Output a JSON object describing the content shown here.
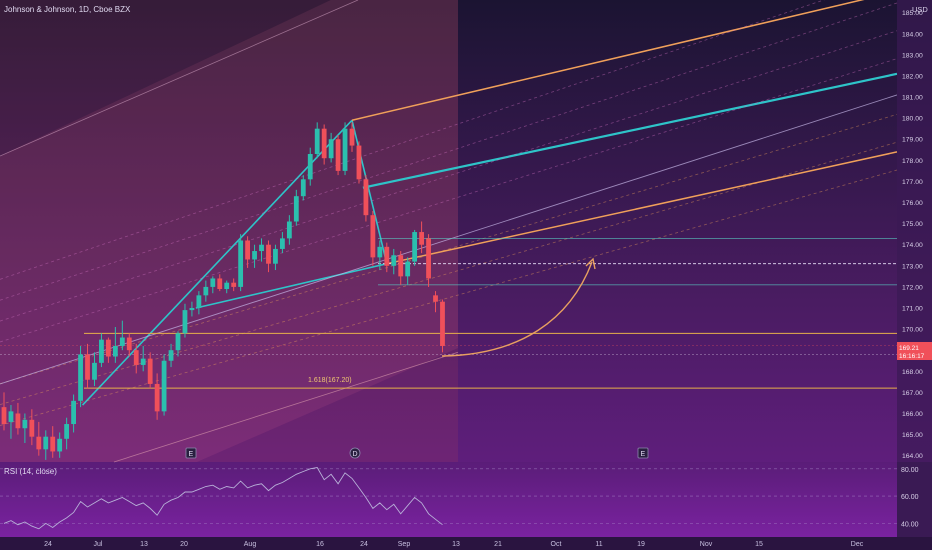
{
  "header": {
    "symbol_title": "Johnson & Johnson, 1D, Cboe BZX"
  },
  "rsi": {
    "label": "RSI (14, close)",
    "ticks": [
      "80.00",
      "60.00",
      "40.00"
    ]
  },
  "currency": "USD",
  "fib_label": "1.618(167.20)",
  "price_badge": {
    "line1": "169.21",
    "line2": "16:16:17"
  },
  "event_markers": [
    "E",
    "D",
    "E"
  ],
  "colors": {
    "up": "#2bbfae",
    "down": "#f0505a",
    "pitchfork_median": "#2ec4c9",
    "pitchfork_upper": "#f0a05a",
    "fib_line": "#e8b04a",
    "rsi_line": "#b8b0d8",
    "arrow": "#e8a060"
  },
  "chart_data": {
    "type": "candlestick",
    "title": "Johnson & Johnson, 1D, Cboe BZX",
    "y_unit": "USD",
    "ylim": [
      163.7,
      185.6
    ],
    "y_ticks": [
      185,
      184,
      183,
      182,
      181,
      180,
      179,
      178,
      177,
      176,
      175,
      174,
      173,
      172,
      171,
      170,
      169,
      168,
      167,
      166,
      165,
      164
    ],
    "x_ticks": [
      "24",
      "Jul",
      "13",
      "20",
      "Aug",
      "16",
      "24",
      "Sep",
      "13",
      "21",
      "Oct",
      "11",
      "19",
      "Nov",
      "15",
      "Dec"
    ],
    "candles": [
      {
        "o": 166.3,
        "h": 167.0,
        "l": 165.2,
        "c": 165.5
      },
      {
        "o": 165.6,
        "h": 166.4,
        "l": 164.8,
        "c": 166.1
      },
      {
        "o": 166.0,
        "h": 166.5,
        "l": 165.0,
        "c": 165.3
      },
      {
        "o": 165.3,
        "h": 166.0,
        "l": 164.6,
        "c": 165.7
      },
      {
        "o": 165.7,
        "h": 166.2,
        "l": 164.5,
        "c": 164.9
      },
      {
        "o": 164.9,
        "h": 165.6,
        "l": 164.0,
        "c": 164.3
      },
      {
        "o": 164.3,
        "h": 165.2,
        "l": 163.8,
        "c": 164.9
      },
      {
        "o": 164.9,
        "h": 165.4,
        "l": 163.9,
        "c": 164.2
      },
      {
        "o": 164.2,
        "h": 165.1,
        "l": 163.9,
        "c": 164.8
      },
      {
        "o": 164.8,
        "h": 165.8,
        "l": 164.3,
        "c": 165.5
      },
      {
        "o": 165.5,
        "h": 166.9,
        "l": 165.1,
        "c": 166.6
      },
      {
        "o": 166.6,
        "h": 169.2,
        "l": 166.3,
        "c": 168.8
      },
      {
        "o": 168.8,
        "h": 169.3,
        "l": 167.2,
        "c": 167.6
      },
      {
        "o": 167.6,
        "h": 168.9,
        "l": 167.3,
        "c": 168.4
      },
      {
        "o": 168.4,
        "h": 169.8,
        "l": 168.2,
        "c": 169.5
      },
      {
        "o": 169.5,
        "h": 169.6,
        "l": 168.4,
        "c": 168.7
      },
      {
        "o": 168.7,
        "h": 170.1,
        "l": 168.4,
        "c": 169.2
      },
      {
        "o": 169.2,
        "h": 170.4,
        "l": 169.0,
        "c": 169.6
      },
      {
        "o": 169.6,
        "h": 169.8,
        "l": 168.7,
        "c": 169.0
      },
      {
        "o": 169.0,
        "h": 169.3,
        "l": 167.9,
        "c": 168.3
      },
      {
        "o": 168.3,
        "h": 169.2,
        "l": 168.0,
        "c": 168.6
      },
      {
        "o": 168.6,
        "h": 168.9,
        "l": 167.2,
        "c": 167.4
      },
      {
        "o": 167.4,
        "h": 167.9,
        "l": 165.7,
        "c": 166.1
      },
      {
        "o": 166.1,
        "h": 168.8,
        "l": 165.9,
        "c": 168.5
      },
      {
        "o": 168.5,
        "h": 169.3,
        "l": 168.2,
        "c": 169.0
      },
      {
        "o": 169.0,
        "h": 169.9,
        "l": 168.7,
        "c": 169.8
      },
      {
        "o": 169.8,
        "h": 171.2,
        "l": 169.6,
        "c": 170.9
      },
      {
        "o": 170.9,
        "h": 171.3,
        "l": 170.6,
        "c": 171.0
      },
      {
        "o": 171.0,
        "h": 171.8,
        "l": 170.7,
        "c": 171.6
      },
      {
        "o": 171.6,
        "h": 172.3,
        "l": 171.3,
        "c": 172.0
      },
      {
        "o": 172.0,
        "h": 172.5,
        "l": 171.7,
        "c": 172.4
      },
      {
        "o": 172.4,
        "h": 172.6,
        "l": 171.8,
        "c": 171.9
      },
      {
        "o": 171.9,
        "h": 172.3,
        "l": 171.7,
        "c": 172.2
      },
      {
        "o": 172.2,
        "h": 172.4,
        "l": 171.8,
        "c": 172.0
      },
      {
        "o": 172.0,
        "h": 174.5,
        "l": 171.8,
        "c": 174.2
      },
      {
        "o": 174.2,
        "h": 174.4,
        "l": 172.9,
        "c": 173.3
      },
      {
        "o": 173.3,
        "h": 174.0,
        "l": 172.9,
        "c": 173.7
      },
      {
        "o": 173.7,
        "h": 174.3,
        "l": 173.2,
        "c": 174.0
      },
      {
        "o": 174.0,
        "h": 174.2,
        "l": 172.7,
        "c": 173.1
      },
      {
        "o": 173.1,
        "h": 174.0,
        "l": 172.8,
        "c": 173.8
      },
      {
        "o": 173.8,
        "h": 174.6,
        "l": 173.6,
        "c": 174.3
      },
      {
        "o": 174.3,
        "h": 175.4,
        "l": 174.0,
        "c": 175.1
      },
      {
        "o": 175.1,
        "h": 176.6,
        "l": 174.9,
        "c": 176.3
      },
      {
        "o": 176.3,
        "h": 177.3,
        "l": 176.1,
        "c": 177.1
      },
      {
        "o": 177.1,
        "h": 178.6,
        "l": 176.8,
        "c": 178.3
      },
      {
        "o": 178.3,
        "h": 179.8,
        "l": 178.1,
        "c": 179.5
      },
      {
        "o": 179.5,
        "h": 179.7,
        "l": 177.8,
        "c": 178.1
      },
      {
        "o": 178.1,
        "h": 179.3,
        "l": 177.9,
        "c": 179.0
      },
      {
        "o": 179.0,
        "h": 179.2,
        "l": 177.3,
        "c": 177.5
      },
      {
        "o": 177.5,
        "h": 179.8,
        "l": 177.3,
        "c": 179.5
      },
      {
        "o": 179.5,
        "h": 179.8,
        "l": 178.4,
        "c": 178.7
      },
      {
        "o": 178.7,
        "h": 178.9,
        "l": 176.9,
        "c": 177.1
      },
      {
        "o": 177.1,
        "h": 177.3,
        "l": 175.1,
        "c": 175.4
      },
      {
        "o": 175.4,
        "h": 175.6,
        "l": 173.0,
        "c": 173.4
      },
      {
        "o": 173.4,
        "h": 174.2,
        "l": 172.8,
        "c": 173.9
      },
      {
        "o": 173.9,
        "h": 174.1,
        "l": 172.7,
        "c": 173.0
      },
      {
        "o": 173.0,
        "h": 173.8,
        "l": 172.6,
        "c": 173.5
      },
      {
        "o": 173.5,
        "h": 173.7,
        "l": 172.1,
        "c": 172.5
      },
      {
        "o": 172.5,
        "h": 173.4,
        "l": 172.1,
        "c": 173.2
      },
      {
        "o": 173.2,
        "h": 174.7,
        "l": 173.0,
        "c": 174.6
      },
      {
        "o": 174.6,
        "h": 175.1,
        "l": 173.6,
        "c": 174.0
      },
      {
        "o": 174.3,
        "h": 174.5,
        "l": 172.0,
        "c": 172.4
      },
      {
        "o": 171.6,
        "h": 171.8,
        "l": 170.8,
        "c": 171.3
      },
      {
        "o": 171.3,
        "h": 171.4,
        "l": 168.9,
        "c": 169.2
      }
    ],
    "fib_levels": [
      169.8,
      167.2
    ],
    "horizontal_levels": [
      174.3,
      173.1,
      172.1
    ],
    "rsi_values": [
      40,
      42,
      39,
      41,
      38,
      36,
      40,
      37,
      41,
      44,
      48,
      56,
      52,
      55,
      58,
      55,
      57,
      59,
      56,
      53,
      55,
      51,
      46,
      54,
      57,
      59,
      63,
      63,
      65,
      67,
      68,
      65,
      67,
      66,
      71,
      66,
      68,
      69,
      64,
      68,
      70,
      73,
      76,
      78,
      80,
      81,
      72,
      76,
      69,
      77,
      73,
      66,
      59,
      51,
      55,
      50,
      54,
      47,
      53,
      59,
      55,
      47,
      43,
      39
    ],
    "rsi_ylim": [
      30,
      85
    ]
  }
}
